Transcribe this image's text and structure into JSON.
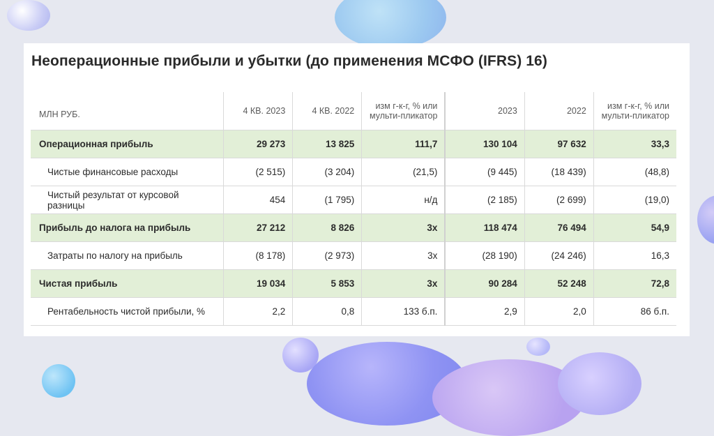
{
  "slide": {
    "title": "Неоперационные прибыли и убытки (до применения МСФО (IFRS) 16)"
  },
  "table": {
    "headers": [
      "МЛН РУБ.",
      "4 КВ. 2023",
      "4 КВ. 2022",
      "изм г-к-г, % или мульти-пликатор",
      "2023",
      "2022",
      "изм г-к-г, % или мульти-пликатор"
    ],
    "rows": [
      {
        "label": "Операционная прибыль",
        "values": [
          "29 273",
          "13 825",
          "111,7",
          "130 104",
          "97 632",
          "33,3"
        ],
        "highlight": true
      },
      {
        "label": "Чистые финансовые расходы",
        "values": [
          "(2 515)",
          "(3 204)",
          "(21,5)",
          "(9 445)",
          "(18 439)",
          "(48,8)"
        ],
        "highlight": false
      },
      {
        "label": "Чистый результат от курсовой разницы",
        "values": [
          "454",
          "(1 795)",
          "н/д",
          "(2 185)",
          "(2 699)",
          "(19,0)"
        ],
        "highlight": false
      },
      {
        "label": "Прибыль до налога на прибыль",
        "values": [
          "27 212",
          "8 826",
          "3x",
          "118 474",
          "76 494",
          "54,9"
        ],
        "highlight": true
      },
      {
        "label": "Затраты по налогу на прибыль",
        "values": [
          "(8 178)",
          "(2 973)",
          "3x",
          "(28 190)",
          "(24 246)",
          "16,3"
        ],
        "highlight": false
      },
      {
        "label": "Чистая прибыль",
        "values": [
          "19 034",
          "5 853",
          "3x",
          "90 284",
          "52 248",
          "72,8"
        ],
        "highlight": true
      },
      {
        "label": "Рентабельность чистой прибыли, %",
        "values": [
          "2,2",
          "0,8",
          "133 б.п.",
          "2,9",
          "2,0",
          "86 б.п."
        ],
        "highlight": false
      }
    ]
  }
}
